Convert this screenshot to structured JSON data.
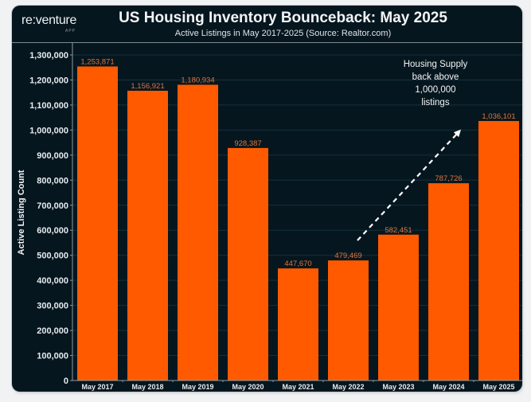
{
  "brand": {
    "name": "re:venture",
    "sub": "APP"
  },
  "chart_data": {
    "type": "bar",
    "title": "US Housing Inventory Bounceback: May 2025",
    "subtitle": "Active Listings in May 2017-2025 (Source: Realtor.com)",
    "xlabel": "",
    "ylabel": "Active Listing Count",
    "categories": [
      "May 2017",
      "May 2018",
      "May 2019",
      "May 2020",
      "May 2021",
      "May 2022",
      "May 2023",
      "May 2024",
      "May 2025"
    ],
    "values": [
      1253871,
      1156921,
      1180934,
      928387,
      447670,
      479469,
      582451,
      787726,
      1036101
    ],
    "data_labels": [
      "1,253,871",
      "1,156,921",
      "1,180,934",
      "928,387",
      "447,670",
      "479,469",
      "582,451",
      "787,726",
      "1,036,101"
    ],
    "ylim": [
      0,
      1300000
    ],
    "yticks": [
      0,
      100000,
      200000,
      300000,
      400000,
      500000,
      600000,
      700000,
      800000,
      900000,
      1000000,
      1100000,
      1200000,
      1300000
    ],
    "ytick_labels": [
      "0",
      "100,000",
      "200,000",
      "300,000",
      "400,000",
      "500,000",
      "600,000",
      "700,000",
      "800,000",
      "900,000",
      "1,000,000",
      "1,100,000",
      "1,200,000",
      "1,300,000"
    ],
    "grid": true,
    "legend": "none",
    "annotation": {
      "lines": [
        "Housing Supply",
        "back above",
        "1,000,000",
        "listings"
      ],
      "arrow": "dashed, rising from May 2022 toward May 2025"
    },
    "colors": {
      "bar": "#ff5a00",
      "background": "#06161f",
      "data_label": "#e0743a",
      "text": "#e8ecee"
    }
  }
}
